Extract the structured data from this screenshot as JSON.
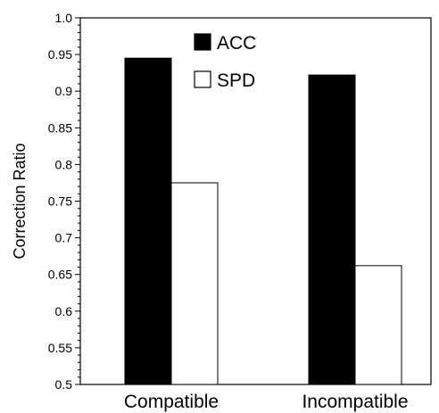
{
  "chart_data": {
    "type": "bar",
    "title": "",
    "xlabel": "",
    "ylabel": "Correction Ratio",
    "ylim": [
      0.5,
      1.0
    ],
    "y_ticks": [
      "0.5",
      "0.55",
      "0.6",
      "0.65",
      "0.7",
      "0.75",
      "0.8",
      "0.85",
      "0.9",
      "0.95",
      "1.0"
    ],
    "categories": [
      "Compatible",
      "Incompatible"
    ],
    "series": [
      {
        "name": "ACC",
        "values": [
          0.945,
          0.922
        ],
        "color": "#000000"
      },
      {
        "name": "SPD",
        "values": [
          0.775,
          0.662
        ],
        "color": "#ffffff"
      }
    ],
    "grid": false,
    "legend_position": "top-center"
  }
}
